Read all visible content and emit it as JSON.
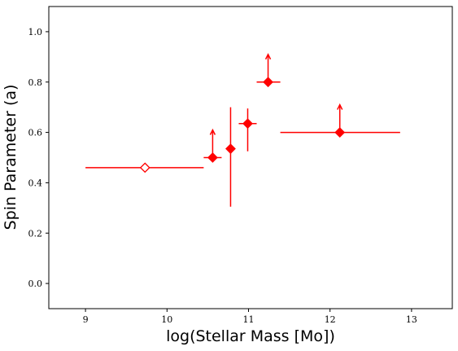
{
  "chart_data": {
    "type": "scatter",
    "xlabel": "log(Stellar Mass [Mo])",
    "ylabel": "Spin Parameter (a)",
    "xlim": [
      8.55,
      13.5
    ],
    "ylim": [
      -0.1,
      1.1
    ],
    "xticks": [
      "9",
      "10",
      "11",
      "12",
      "13"
    ],
    "yticks": [
      "0.0",
      "0.2",
      "0.4",
      "0.6",
      "0.8",
      "1.0"
    ],
    "grid": false,
    "color": "#ff0000",
    "points": [
      {
        "x": 9.73,
        "y": 0.46,
        "xerr": [
          9.0,
          10.45
        ],
        "marker": "diamond-open",
        "lower_limit": false
      },
      {
        "x": 10.56,
        "y": 0.5,
        "xerr": [
          10.45,
          10.67
        ],
        "marker": "diamond",
        "lower_limit": true
      },
      {
        "x": 10.78,
        "y": 0.535,
        "yerr": [
          0.305,
          0.7
        ],
        "marker": "diamond",
        "lower_limit": false
      },
      {
        "x": 10.99,
        "y": 0.635,
        "xerr": [
          10.88,
          11.1
        ],
        "yerr": [
          0.525,
          0.695
        ],
        "marker": "diamond",
        "lower_limit": false
      },
      {
        "x": 11.24,
        "y": 0.8,
        "xerr": [
          11.1,
          11.39
        ],
        "marker": "diamond",
        "lower_limit": true
      },
      {
        "x": 12.12,
        "y": 0.6,
        "xerr": [
          11.39,
          12.86
        ],
        "marker": "diamond",
        "lower_limit": true
      }
    ]
  }
}
